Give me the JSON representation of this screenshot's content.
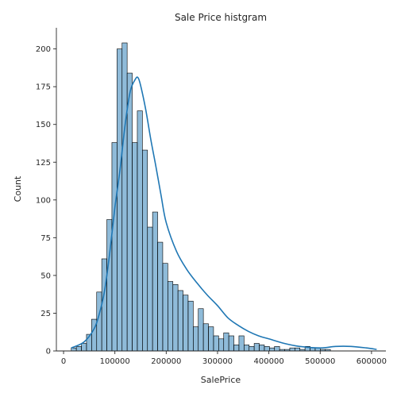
{
  "chart_data": {
    "type": "bar",
    "title": "Sale Price histgram",
    "xlabel": "SalePrice",
    "ylabel": "Count",
    "xlim": [
      -14000,
      628000
    ],
    "ylim": [
      0,
      214
    ],
    "xticks": [
      0,
      100000,
      200000,
      300000,
      400000,
      500000,
      600000
    ],
    "yticks": [
      0,
      25,
      50,
      75,
      100,
      125,
      150,
      175,
      200
    ],
    "bin_start": 15000,
    "bin_width": 9900,
    "counts": [
      2,
      3,
      5,
      11,
      21,
      39,
      61,
      87,
      138,
      200,
      204,
      184,
      138,
      159,
      133,
      82,
      92,
      72,
      58,
      46,
      44,
      40,
      37,
      33,
      16,
      28,
      18,
      16,
      10,
      8,
      12,
      10,
      4,
      10,
      4,
      3,
      5,
      4,
      3,
      2,
      3,
      1,
      1,
      2,
      2,
      1,
      3,
      2,
      2,
      1,
      1
    ],
    "kde_x": [
      15000,
      40000,
      60000,
      70000,
      80000,
      90000,
      100000,
      110000,
      120000,
      130000,
      140000,
      145000,
      150000,
      160000,
      170000,
      180000,
      190000,
      200000,
      220000,
      240000,
      260000,
      280000,
      300000,
      320000,
      340000,
      360000,
      380000,
      400000,
      430000,
      460000,
      500000,
      530000,
      560000,
      590000,
      610000
    ],
    "kde_y": [
      2,
      6,
      15,
      25,
      40,
      65,
      95,
      120,
      150,
      172,
      180,
      181,
      176,
      160,
      140,
      122,
      103,
      85,
      66,
      54,
      45,
      37,
      30,
      22,
      17,
      13,
      10,
      8,
      5,
      3,
      2,
      3,
      3,
      2,
      1
    ],
    "bar_color": "#1f77b4",
    "bar_alpha": 0.5,
    "line_color": "#1f77b4",
    "grid": false,
    "legend": "none"
  }
}
